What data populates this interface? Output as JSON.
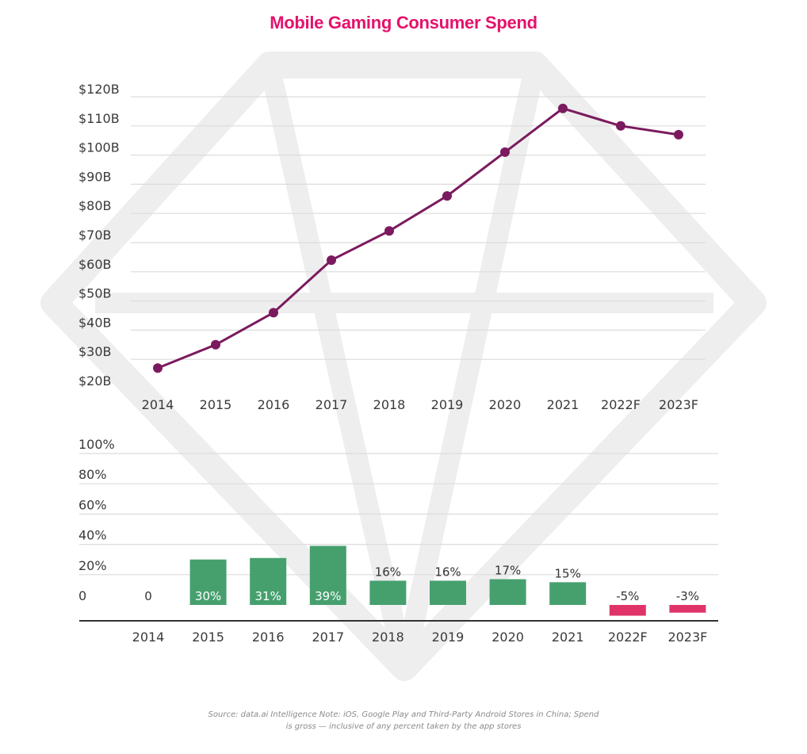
{
  "title": "Mobile Gaming Consumer Spend",
  "source_note": "Source: data.ai Intelligence Note: iOS, Google Play and Third-Party Android Stores in China; Spend is gross — inclusive of any percent taken by the app stores",
  "colors": {
    "title": "#e4126b",
    "line": "#7b1a5e",
    "positive_bar": "#46a06e",
    "negative_bar": "#e0336a",
    "grid": "#dcdcdc",
    "watermark": "#eeeeee"
  },
  "chart_data": [
    {
      "type": "line",
      "x": [
        "2014",
        "2015",
        "2016",
        "2017",
        "2018",
        "2019",
        "2020",
        "2021",
        "2022F",
        "2023F"
      ],
      "y": [
        27,
        35,
        46,
        64,
        74,
        86,
        101,
        116,
        110,
        107
      ],
      "y_tick_labels": [
        "$20B",
        "$30B",
        "$40B",
        "$50B",
        "$60B",
        "$70B",
        "$80B",
        "$90B",
        "$100B",
        "$110B",
        "$120B"
      ],
      "ylim": [
        20,
        120
      ],
      "grid": true
    },
    {
      "type": "bar",
      "categories": [
        "2014",
        "2015",
        "2016",
        "2017",
        "2018",
        "2019",
        "2020",
        "2021",
        "2022F",
        "2023F"
      ],
      "values": [
        0,
        30,
        31,
        39,
        16,
        16,
        17,
        15,
        -5,
        -3
      ],
      "data_labels": [
        "0",
        "30%",
        "31%",
        "39%",
        "16%",
        "16%",
        "17%",
        "15%",
        "-5%",
        "-3%"
      ],
      "y_tick_labels": [
        "0",
        "20%",
        "40%",
        "60%",
        "80%",
        "100%"
      ],
      "ylim": [
        0,
        100
      ],
      "grid": true
    }
  ]
}
